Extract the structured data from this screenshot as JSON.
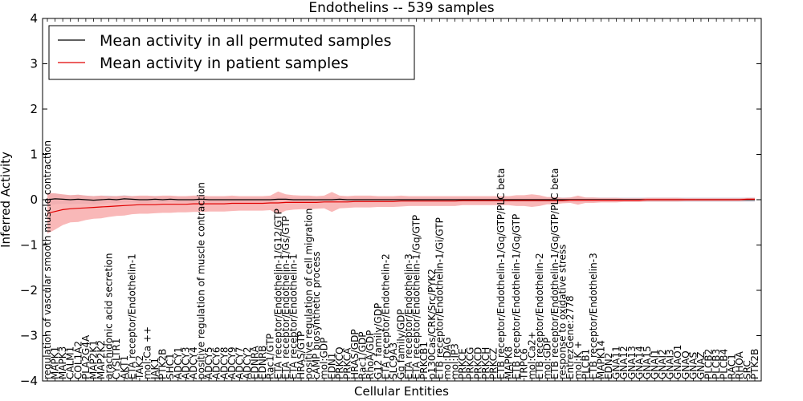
{
  "chart_data": {
    "type": "line",
    "title": "Endothelins -- 539 samples",
    "xlabel": "Cellular Entities",
    "ylabel": "Inferred Activity",
    "ylim": [
      -4,
      4
    ],
    "yticks": [
      -4,
      -3,
      -2,
      -1,
      0,
      1,
      2,
      3,
      4
    ],
    "grid": false,
    "legend_position": "top-left",
    "colors": {
      "permuted": "#000000",
      "patient": "#e00000",
      "patient_band": "#f7a0a0",
      "permuted_band": "#c8c8d8"
    },
    "categories": [
      "regulation of vascular smooth muscle contraction",
      "MAPK1",
      "MAPK3",
      "CALM1",
      "COL1A2",
      "PLA2G4A",
      "MAP2K1",
      "MAP2K2",
      "arachidonic acid secretion",
      "CYSLTR1",
      "AKT1",
      "ETA receptor/Endothelin-1",
      "TAK2",
      "mol:Ca ++",
      "JAK1",
      "PTK2B",
      "SHC1",
      "ADCY1",
      "ADCY3",
      "ADCY4",
      "positive regulation of muscle contraction",
      "ADCY5",
      "ADCY6",
      "ADCY8",
      "ADCY9",
      "ADCY7",
      "ADCY2",
      "EDNRA",
      "EDNRB",
      "Rac1/GTP",
      "ETA receptor/Endothelin-1/G12/GTP",
      "ETA receptor/Endothelin-1/Gs/GTP",
      "ETA receptor/Endothelin-1",
      "HRAS/GTP",
      "positive regulation of cell migration",
      "cAMP biosynthetic process",
      "mol:GDP",
      "EDN1",
      "PRKCQ",
      "PRKCA",
      "HRAS/GDP",
      "Rac1/GDP",
      "RhoA/GDP",
      "G12 family/GDP",
      "ETA receptor/Endothelin-2",
      "SLC9A3",
      "Gq family/GDP",
      "ETA receptor/Endothelin-3",
      "ETA receptor/Endothelin-1/Gq/GTP",
      "PRKCB1",
      "p130Cas/CRK/Src/PYK2",
      "ETB receptor/Endothelin-1/Gi/GTP",
      "mol:DAG",
      "mol:IP3",
      "PRKCE",
      "PRKCG",
      "PRKCD",
      "PRKCH",
      "PRKCZ",
      "ETB receptor/Endothelin-1/Gq/GTP/PLC beta",
      "MAPK8",
      "ETB receptor/Endothelin-1/Gq/GTP",
      "TRPC6",
      "mol:Ca2+",
      "ETB receptor/Endothelin-2",
      "mol:GDP",
      "ETB receptor/Endothelin-1/Gq/GTP/PLC beta",
      "response to oxidative stress",
      "EntrezGene:2778",
      "mol:K +",
      "PLCB1",
      "ETB receptor/Endothelin-3",
      "MAPK14",
      "EDN2",
      "GNA11",
      "GNA12",
      "GNA13",
      "GNA14",
      "GNA15",
      "GNAI1",
      "GNAI2",
      "GNAI3",
      "GNAO1",
      "GNAQ",
      "GNAS",
      "GNAZ",
      "PLCB2",
      "PLCB3",
      "PLCB4",
      "RAC1",
      "RHOA",
      "SRC",
      "PTK2B"
    ],
    "series": [
      {
        "name": "Mean activity in all permuted samples",
        "values": [
          0.0,
          0.02,
          0.01,
          0.0,
          0.01,
          0.0,
          -0.01,
          0.0,
          0.01,
          0.0,
          0.02,
          0.01,
          0.0,
          0.0,
          0.01,
          0.0,
          0.01,
          0.0,
          0.0,
          0.0,
          0.01,
          0.0,
          0.0,
          0.0,
          0.0,
          0.0,
          0.0,
          0.0,
          0.0,
          0.0,
          0.01,
          0.01,
          0.0,
          0.0,
          0.0,
          0.0,
          0.0,
          0.0,
          0.01,
          0.0,
          0.0,
          0.0,
          0.0,
          0.0,
          0.0,
          0.0,
          0.0,
          0.0,
          0.0,
          0.0,
          0.0,
          0.0,
          0.0,
          0.0,
          0.0,
          0.0,
          0.0,
          0.0,
          0.0,
          0.0,
          0.0,
          0.0,
          0.0,
          0.0,
          0.0,
          0.0,
          0.0,
          0.0,
          0.0,
          0.0,
          0.0,
          0.0,
          0.0,
          0.0,
          0.0,
          0.0,
          0.0,
          0.0,
          0.0,
          0.0,
          0.0,
          0.0,
          0.0,
          0.0,
          0.0,
          0.0,
          0.0,
          0.0,
          0.0,
          0.0,
          0.0,
          0.0,
          0.0
        ],
        "std": [
          0.12,
          0.12,
          0.1,
          0.1,
          0.1,
          0.09,
          0.09,
          0.09,
          0.08,
          0.08,
          0.08,
          0.07,
          0.07,
          0.07,
          0.07,
          0.06,
          0.06,
          0.06,
          0.06,
          0.06,
          0.06,
          0.06,
          0.06,
          0.06,
          0.05,
          0.05,
          0.05,
          0.05,
          0.05,
          0.05,
          0.05,
          0.05,
          0.05,
          0.05,
          0.05,
          0.05,
          0.05,
          0.05,
          0.05,
          0.05,
          0.05,
          0.05,
          0.05,
          0.05,
          0.05,
          0.05,
          0.05,
          0.05,
          0.05,
          0.05,
          0.05,
          0.05,
          0.05,
          0.05,
          0.05,
          0.05,
          0.05,
          0.05,
          0.05,
          0.05,
          0.05,
          0.05,
          0.05,
          0.05,
          0.05,
          0.05,
          0.05,
          0.05,
          0.05,
          0.05,
          0.05,
          0.05,
          0.05,
          0.05,
          0.05,
          0.05,
          0.05,
          0.05,
          0.05,
          0.05,
          0.05,
          0.05,
          0.05,
          0.05,
          0.05,
          0.05,
          0.05,
          0.05,
          0.05,
          0.05,
          0.05,
          0.05,
          0.05
        ]
      },
      {
        "name": "Mean activity in patient samples",
        "values": [
          -0.3,
          -0.26,
          -0.22,
          -0.2,
          -0.19,
          -0.18,
          -0.17,
          -0.16,
          -0.15,
          -0.14,
          -0.13,
          -0.12,
          -0.11,
          -0.11,
          -0.11,
          -0.1,
          -0.1,
          -0.1,
          -0.1,
          -0.09,
          -0.09,
          -0.09,
          -0.09,
          -0.09,
          -0.08,
          -0.08,
          -0.08,
          -0.08,
          -0.08,
          -0.07,
          -0.07,
          -0.06,
          -0.06,
          -0.06,
          -0.06,
          -0.06,
          -0.05,
          -0.05,
          -0.05,
          -0.05,
          -0.04,
          -0.04,
          -0.04,
          -0.04,
          -0.04,
          -0.04,
          -0.03,
          -0.03,
          -0.03,
          -0.03,
          -0.03,
          -0.03,
          -0.03,
          -0.03,
          -0.02,
          -0.02,
          -0.02,
          -0.02,
          -0.02,
          -0.02,
          -0.02,
          -0.02,
          -0.02,
          -0.02,
          -0.02,
          -0.02,
          -0.02,
          -0.02,
          -0.01,
          -0.01,
          -0.01,
          -0.01,
          -0.01,
          -0.01,
          -0.01,
          -0.01,
          -0.01,
          -0.01,
          0.0,
          0.0,
          0.0,
          0.0,
          0.0,
          0.0,
          0.0,
          0.0,
          0.0,
          0.0,
          0.0,
          0.0,
          0.0,
          0.01,
          0.01
        ],
        "std": [
          0.45,
          0.4,
          0.34,
          0.3,
          0.3,
          0.27,
          0.25,
          0.25,
          0.23,
          0.22,
          0.22,
          0.2,
          0.2,
          0.2,
          0.19,
          0.19,
          0.19,
          0.18,
          0.18,
          0.18,
          0.18,
          0.17,
          0.17,
          0.17,
          0.17,
          0.16,
          0.16,
          0.16,
          0.16,
          0.16,
          0.25,
          0.18,
          0.16,
          0.15,
          0.15,
          0.14,
          0.14,
          0.22,
          0.14,
          0.13,
          0.13,
          0.13,
          0.13,
          0.12,
          0.12,
          0.12,
          0.12,
          0.11,
          0.11,
          0.11,
          0.11,
          0.11,
          0.11,
          0.11,
          0.1,
          0.1,
          0.1,
          0.1,
          0.1,
          0.1,
          0.1,
          0.12,
          0.12,
          0.14,
          0.12,
          0.08,
          0.08,
          0.06,
          0.06,
          0.1,
          0.06,
          0.06,
          0.05,
          0.05,
          0.05,
          0.04,
          0.04,
          0.04,
          0.04,
          0.04,
          0.04,
          0.04,
          0.04,
          0.03,
          0.03,
          0.03,
          0.03,
          0.03,
          0.03,
          0.03,
          0.03,
          0.03,
          0.03
        ]
      }
    ]
  }
}
